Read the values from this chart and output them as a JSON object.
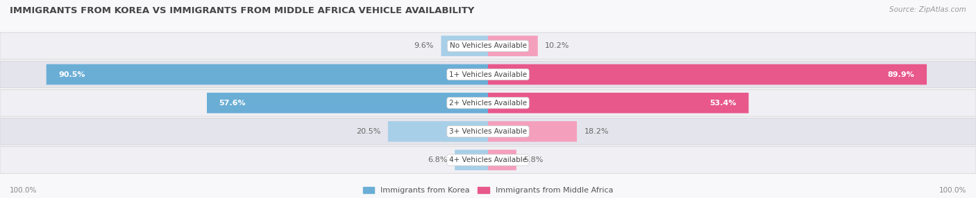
{
  "title": "IMMIGRANTS FROM KOREA VS IMMIGRANTS FROM MIDDLE AFRICA VEHICLE AVAILABILITY",
  "source": "Source: ZipAtlas.com",
  "categories": [
    "No Vehicles Available",
    "1+ Vehicles Available",
    "2+ Vehicles Available",
    "3+ Vehicles Available",
    "4+ Vehicles Available"
  ],
  "korea_values": [
    9.6,
    90.5,
    57.6,
    20.5,
    6.8
  ],
  "africa_values": [
    10.2,
    89.9,
    53.4,
    18.2,
    5.8
  ],
  "korea_color_large": "#6aaed6",
  "korea_color_small": "#a8cfe8",
  "africa_color_large": "#e8588a",
  "africa_color_small": "#f4a0bc",
  "row_colors": [
    "#f0f0f4",
    "#e4e4ec",
    "#f0f0f4",
    "#e4e4ec",
    "#f0f0f4"
  ],
  "bg_color": "#f8f8fa",
  "title_color": "#444444",
  "value_color_inside": "#ffffff",
  "value_color_outside": "#666666",
  "source_color": "#999999",
  "footer_color": "#888888",
  "cat_label_color": "#444444",
  "max_pct": 100.0,
  "figsize": [
    14.06,
    2.86
  ],
  "dpi": 100,
  "large_threshold": 40
}
